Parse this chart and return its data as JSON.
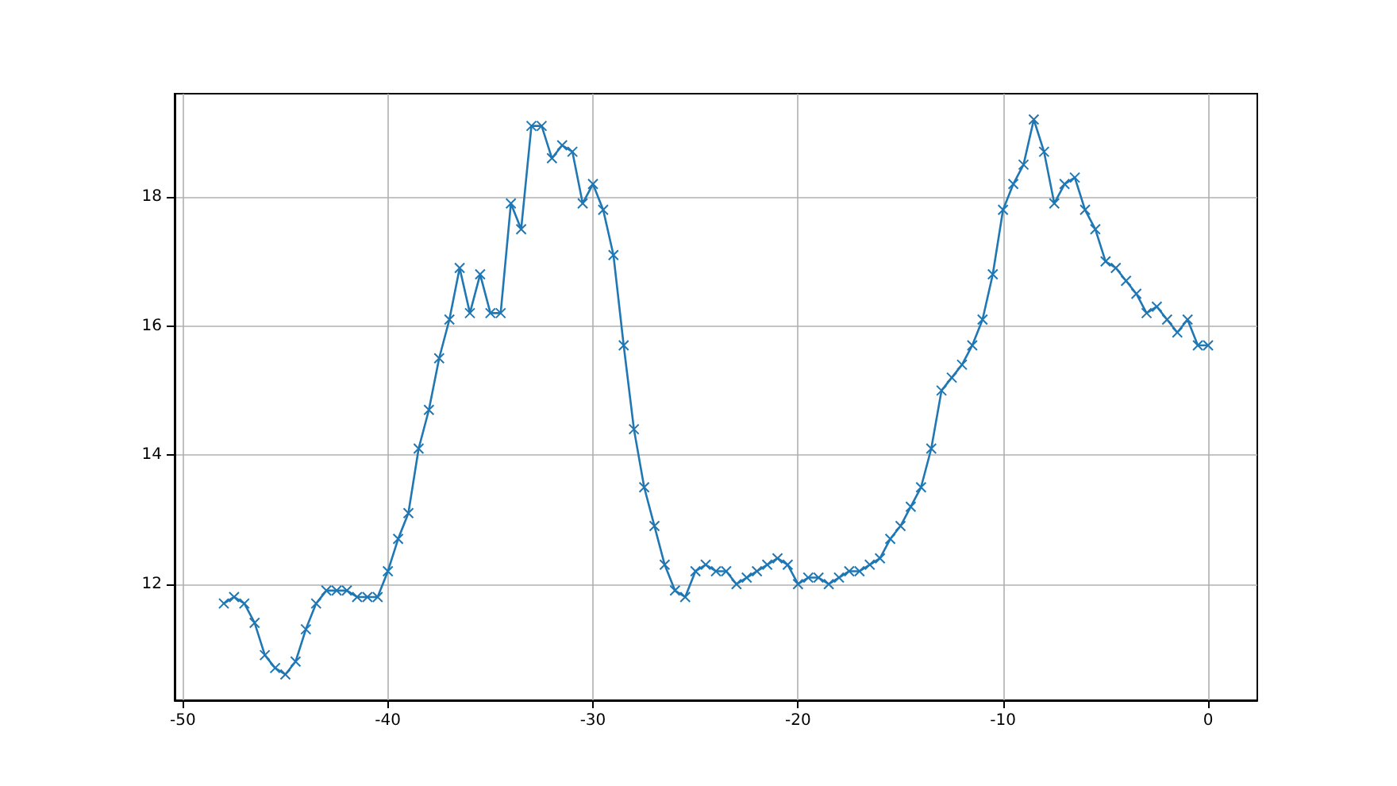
{
  "chart_data": {
    "type": "line",
    "x": [
      -48,
      -47.5,
      -47,
      -46.5,
      -46,
      -45.5,
      -45,
      -44.5,
      -44,
      -43.5,
      -43,
      -42.5,
      -42,
      -41.5,
      -41,
      -40.5,
      -40,
      -39.5,
      -39,
      -38.5,
      -38,
      -37.5,
      -37,
      -36.5,
      -36,
      -35.5,
      -35,
      -34.5,
      -34,
      -33.5,
      -33,
      -32.5,
      -32,
      -31.5,
      -31,
      -30.5,
      -30,
      -29.5,
      -29,
      -28.5,
      -28,
      -27.5,
      -27,
      -26.5,
      -26,
      -25.5,
      -25,
      -24.5,
      -24,
      -23.5,
      -23,
      -22.5,
      -22,
      -21.5,
      -21,
      -20.5,
      -20,
      -19.5,
      -19,
      -18.5,
      -18,
      -17.5,
      -17,
      -16.5,
      -16,
      -15.5,
      -15,
      -14.5,
      -14,
      -13.5,
      -13,
      -12.5,
      -12,
      -11.5,
      -11,
      -10.5,
      -10,
      -9.5,
      -9,
      -8.5,
      -8,
      -7.5,
      -7,
      -6.5,
      -6,
      -5.5,
      -5,
      -4.5,
      -4,
      -3.5,
      -3,
      -2.5,
      -2,
      -1.5,
      -1,
      -0.5,
      0
    ],
    "series": [
      {
        "color": "#1f77b4",
        "values": [
          11.7,
          11.8,
          11.7,
          11.4,
          10.9,
          10.7,
          10.6,
          10.8,
          11.3,
          11.7,
          11.9,
          11.9,
          11.9,
          11.8,
          11.8,
          11.8,
          12.2,
          12.7,
          13.1,
          14.1,
          14.7,
          15.5,
          16.1,
          16.9,
          16.2,
          16.8,
          16.2,
          16.2,
          17.9,
          17.5,
          19.1,
          19.1,
          18.6,
          18.8,
          18.7,
          17.9,
          18.2,
          17.8,
          17.1,
          15.7,
          14.4,
          13.5,
          12.9,
          12.3,
          11.9,
          11.8,
          12.2,
          12.3,
          12.2,
          12.2,
          12.0,
          12.1,
          12.2,
          12.3,
          12.4,
          12.3,
          12.0,
          12.1,
          12.1,
          12.0,
          12.1,
          12.2,
          12.2,
          12.3,
          12.4,
          12.7,
          12.9,
          13.2,
          13.5,
          14.1,
          15.0,
          15.2,
          15.4,
          15.7,
          16.1,
          16.8,
          17.8,
          18.2,
          18.5,
          19.2,
          18.7,
          17.9,
          18.2,
          18.3,
          17.8,
          17.5,
          17.0,
          16.9,
          16.7,
          16.5,
          16.2,
          16.3,
          16.1,
          15.9,
          16.1,
          15.7,
          15.7
        ]
      }
    ],
    "xlim": [
      -50.4,
      2.4
    ],
    "ylim": [
      10.2,
      19.6
    ],
    "xticks": [
      -50,
      -40,
      -30,
      -20,
      -10,
      0
    ],
    "yticks": [
      12,
      14,
      16,
      18
    ],
    "grid": true,
    "marker": "cross",
    "line_style": "solid"
  }
}
